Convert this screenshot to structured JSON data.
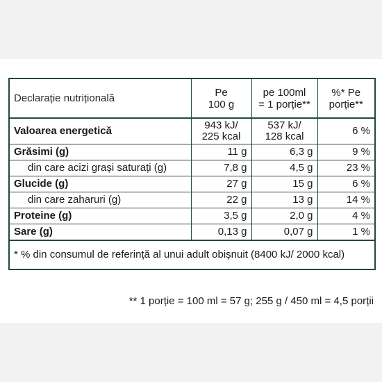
{
  "table": {
    "header": {
      "label": "Declarație nutrițională",
      "col1": [
        "Pe",
        "100 g"
      ],
      "col2": [
        "pe  100ml",
        "= 1 porție**"
      ],
      "col3": [
        "%* Pe",
        "porție**"
      ]
    },
    "energy": {
      "label": "Valoarea energetică",
      "col1": [
        "943 kJ/",
        "225 kcal"
      ],
      "col2": [
        "537 kJ/",
        "128 kcal"
      ],
      "pct": "6 %"
    },
    "rows": [
      {
        "label": "Grăsimi (g)",
        "v1": "11 g",
        "v2": "6,3 g",
        "pct": "9 %"
      },
      {
        "label": "din care acizi grași saturați (g)",
        "v1": "7,8 g",
        "v2": "4,5 g",
        "pct": "23 %"
      },
      {
        "label": "Glucide (g)",
        "v1": "27 g",
        "v2": "15 g",
        "pct": "6 %"
      },
      {
        "label": "din care zaharuri (g)",
        "v1": "22 g",
        "v2": "13 g",
        "pct": "14 %"
      },
      {
        "label": "Proteine (g)",
        "v1": "3,5 g",
        "v2": "2,0 g",
        "pct": "4 %"
      },
      {
        "label": "Sare (g)",
        "v1": "0,13 g",
        "v2": "0,07 g",
        "pct": "1 %"
      }
    ],
    "footnote": "* % din consumul de referință al unui adult obișnuit (8400 kJ/ 2000 kcal)"
  },
  "bottom_note": "** 1 porție = 100 ml =  57 g; 255 g / 450 ml = 4,5 porții"
}
